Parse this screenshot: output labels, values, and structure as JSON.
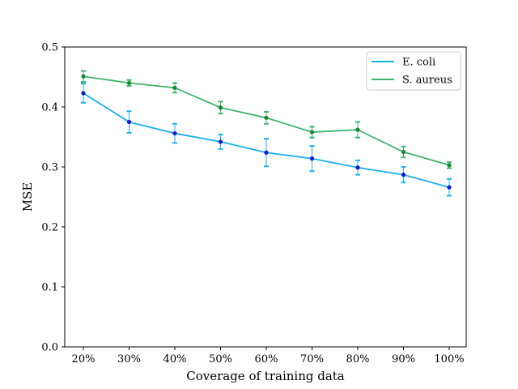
{
  "chart_data": {
    "type": "line",
    "categories": [
      "20%",
      "30%",
      "40%",
      "50%",
      "60%",
      "70%",
      "80%",
      "90%",
      "100%"
    ],
    "xlabel": "Coverage of training data",
    "ylabel": "MSE",
    "ylim": [
      0.0,
      0.5
    ],
    "yticks": [
      "0.0",
      "0.1",
      "0.2",
      "0.3",
      "0.4",
      "0.5"
    ],
    "grid": false,
    "legend_position": "top-right",
    "series": [
      {
        "name": "E. coli",
        "color": "#1ab0f0",
        "marker_color": "#0a1ad8",
        "values": [
          0.423,
          0.375,
          0.356,
          0.342,
          0.324,
          0.314,
          0.299,
          0.287,
          0.266
        ],
        "errors": [
          0.016,
          0.018,
          0.016,
          0.012,
          0.023,
          0.021,
          0.012,
          0.013,
          0.014
        ]
      },
      {
        "name": "S. aureus",
        "color": "#3cb46e",
        "marker_color": "#128a2a",
        "values": [
          0.451,
          0.44,
          0.432,
          0.399,
          0.382,
          0.358,
          0.362,
          0.325,
          0.303
        ],
        "errors": [
          0.009,
          0.005,
          0.008,
          0.01,
          0.01,
          0.009,
          0.013,
          0.009,
          0.005
        ]
      }
    ]
  }
}
